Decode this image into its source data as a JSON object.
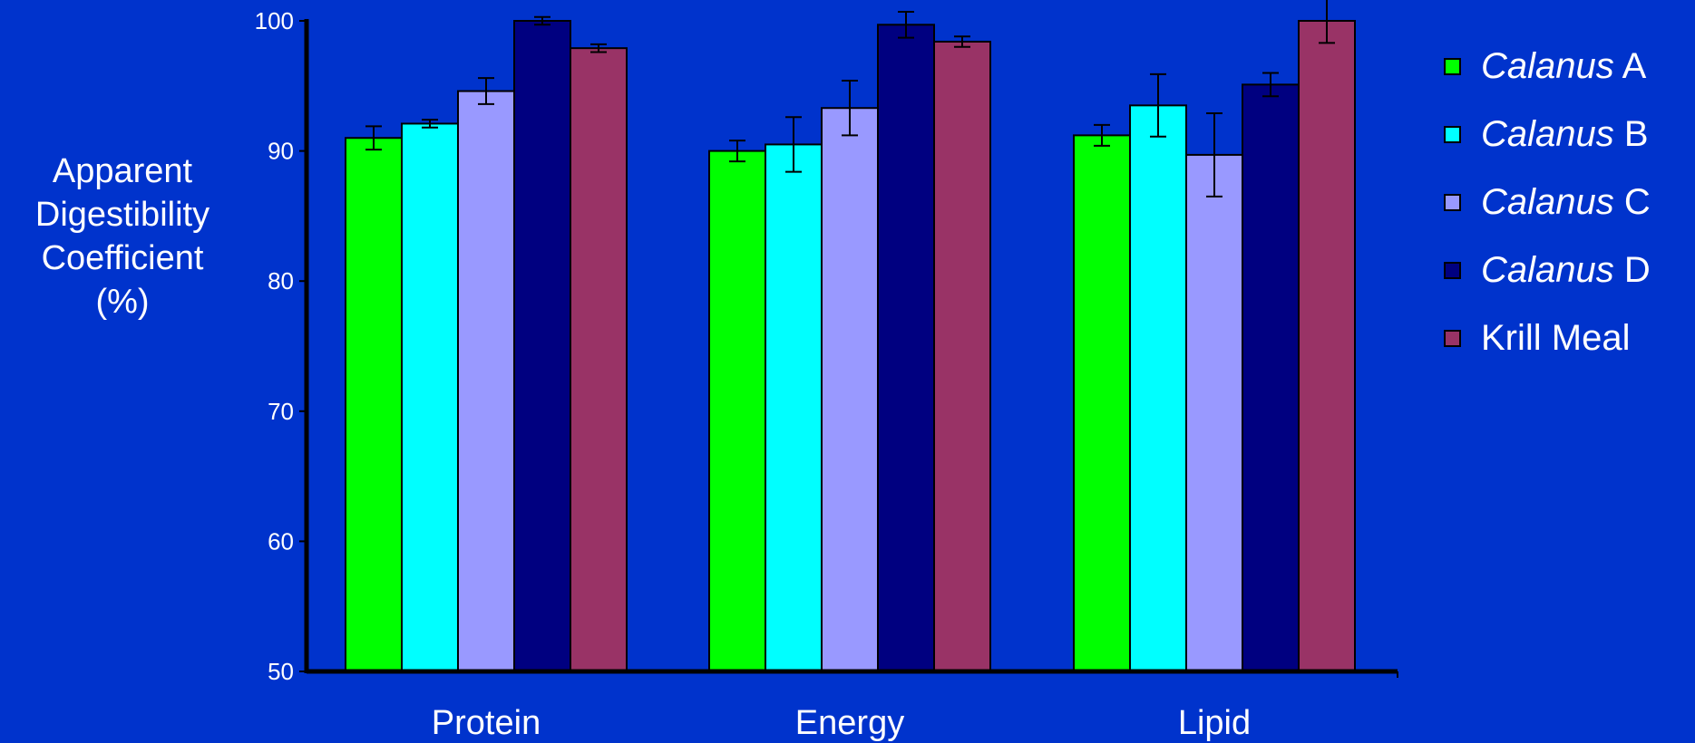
{
  "chart_data": {
    "type": "bar",
    "title": "",
    "ylabel_lines": [
      "Apparent",
      "Digestibility",
      "Coefficient",
      "(%)"
    ],
    "xlabel": "",
    "ylim": [
      50,
      100
    ],
    "yticks": [
      50,
      60,
      70,
      80,
      90,
      100
    ],
    "categories": [
      "Protein",
      "Energy",
      "Lipid"
    ],
    "grid": false,
    "legend_placement": "right",
    "series": [
      {
        "name": "Calanus A",
        "name_italic": "Calanus",
        "name_rest": " A",
        "color": "#00FF00",
        "values": [
          91.0,
          90.0,
          91.2
        ],
        "errors": [
          0.9,
          0.8,
          0.8
        ]
      },
      {
        "name": "Calanus B",
        "name_italic": "Calanus",
        "name_rest": " B",
        "color": "#00FFFF",
        "values": [
          92.1,
          90.5,
          93.5
        ],
        "errors": [
          0.3,
          2.1,
          2.4
        ]
      },
      {
        "name": "Calanus C",
        "name_italic": "Calanus",
        "name_rest": " C",
        "color": "#9999FF",
        "values": [
          94.6,
          93.3,
          89.7
        ],
        "errors": [
          1.0,
          2.1,
          3.2
        ]
      },
      {
        "name": "Calanus D",
        "name_italic": "Calanus",
        "name_rest": " D",
        "color": "#000080",
        "values": [
          100.0,
          99.7,
          95.1
        ],
        "errors": [
          0.3,
          1.0,
          0.9
        ]
      },
      {
        "name": "Krill Meal",
        "name_italic": "",
        "name_rest": "Krill Meal",
        "color": "#993366",
        "values": [
          97.9,
          98.4,
          100.0
        ],
        "errors": [
          0.3,
          0.4,
          1.7
        ]
      }
    ]
  }
}
